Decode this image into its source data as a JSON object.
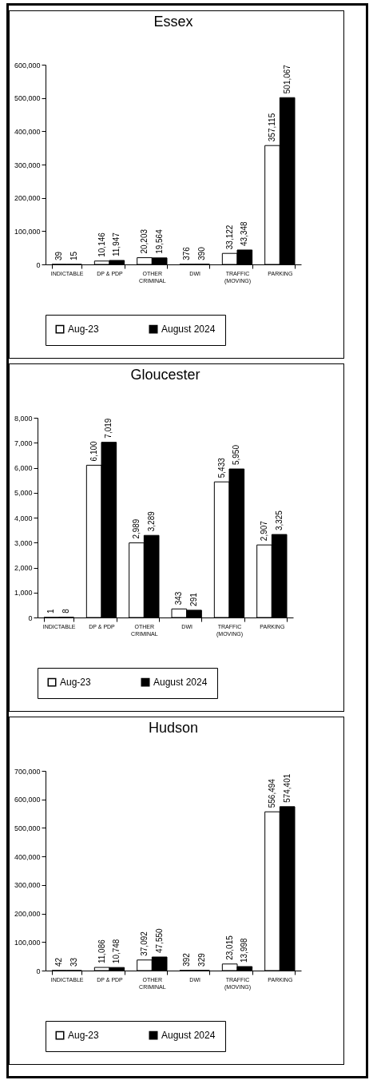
{
  "chart_data": [
    {
      "type": "bar",
      "title": "Essex",
      "categories": [
        "INDICTABLE",
        "DP & PDP",
        "OTHER CRIMINAL",
        "DWI",
        "TRAFFIC (MOVING)",
        "PARKING"
      ],
      "series": [
        {
          "name": "Aug-23",
          "color": "#ffffff",
          "values": [
            39,
            10146,
            20203,
            376,
            33122,
            357115
          ],
          "value_labels": [
            "39",
            "10,146",
            "20,203",
            "376",
            "33,122",
            "357,115"
          ]
        },
        {
          "name": "August 2024",
          "color": "#000000",
          "values": [
            15,
            11947,
            19564,
            390,
            43348,
            501067
          ],
          "value_labels": [
            "15",
            "11,947",
            "19,564",
            "390",
            "43,348",
            "501,067"
          ]
        }
      ],
      "ylim": [
        0,
        600000
      ],
      "yticks": [
        {
          "value": 0,
          "label": "0"
        },
        {
          "value": 100000,
          "label": "100,000"
        },
        {
          "value": 200000,
          "label": "200,000"
        },
        {
          "value": 300000,
          "label": "300,000"
        },
        {
          "value": 400000,
          "label": "400,000"
        },
        {
          "value": 500000,
          "label": "500,000"
        },
        {
          "value": 600000,
          "label": "600,000"
        }
      ],
      "legend": "bottom"
    },
    {
      "type": "bar",
      "title": "Gloucester",
      "categories": [
        "INDICTABLE",
        "DP & PDP",
        "OTHER CRIMINAL",
        "DWI",
        "TRAFFIC (MOVING)",
        "PARKING"
      ],
      "series": [
        {
          "name": "Aug-23",
          "color": "#ffffff",
          "values": [
            1,
            6100,
            2989,
            343,
            5433,
            2907
          ],
          "value_labels": [
            "1",
            "6,100",
            "2,989",
            "343",
            "5,433",
            "2,907"
          ]
        },
        {
          "name": "August 2024",
          "color": "#000000",
          "values": [
            8,
            7019,
            3289,
            291,
            5950,
            3325
          ],
          "value_labels": [
            "8",
            "7,019",
            "3,289",
            "291",
            "5,950",
            "3,325"
          ]
        }
      ],
      "ylim": [
        0,
        8000
      ],
      "yticks": [
        {
          "value": 0,
          "label": "0"
        },
        {
          "value": 1000,
          "label": "1,000"
        },
        {
          "value": 2000,
          "label": "2,000"
        },
        {
          "value": 3000,
          "label": "3,000"
        },
        {
          "value": 4000,
          "label": "4,000"
        },
        {
          "value": 5000,
          "label": "5,000"
        },
        {
          "value": 6000,
          "label": "6,000"
        },
        {
          "value": 7000,
          "label": "7,000"
        },
        {
          "value": 8000,
          "label": "8,000"
        }
      ],
      "legend": "bottom"
    },
    {
      "type": "bar",
      "title": "Hudson",
      "categories": [
        "INDICTABLE",
        "DP & PDP",
        "OTHER CRIMINAL",
        "DWI",
        "TRAFFIC (MOVING)",
        "PARKING"
      ],
      "series": [
        {
          "name": "Aug-23",
          "color": "#ffffff",
          "values": [
            42,
            11086,
            37092,
            392,
            23015,
            556494
          ],
          "value_labels": [
            "42",
            "11,086",
            "37,092",
            "392",
            "23,015",
            "556,494"
          ]
        },
        {
          "name": "August 2024",
          "color": "#000000",
          "values": [
            33,
            10748,
            47550,
            329,
            13998,
            574401
          ],
          "value_labels": [
            "33",
            "10,748",
            "47,550",
            "329",
            "13,998",
            "574,401"
          ]
        }
      ],
      "ylim": [
        0,
        700000
      ],
      "yticks": [
        {
          "value": 0,
          "label": "0"
        },
        {
          "value": 100000,
          "label": "100,000"
        },
        {
          "value": 200000,
          "label": "200,000"
        },
        {
          "value": 300000,
          "label": "300,000"
        },
        {
          "value": 400000,
          "label": "400,000"
        },
        {
          "value": 500000,
          "label": "500,000"
        },
        {
          "value": 600000,
          "label": "600,000"
        },
        {
          "value": 700000,
          "label": "700,000"
        }
      ],
      "legend": "bottom"
    }
  ]
}
